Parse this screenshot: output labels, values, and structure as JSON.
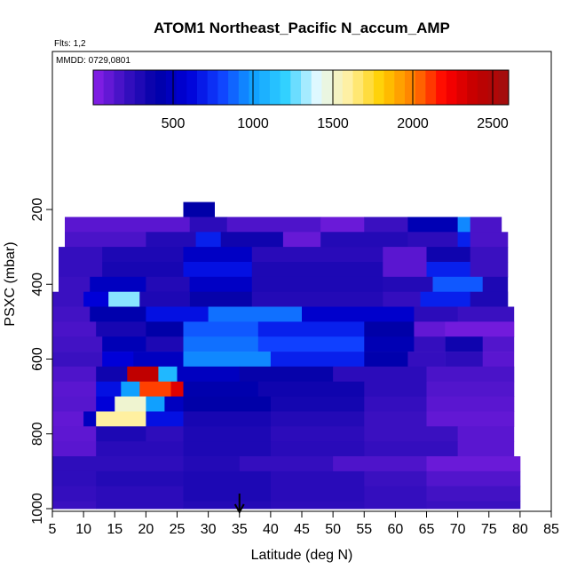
{
  "chart_data": {
    "type": "heatmap",
    "title": "ATOM1 Northeast_Pacific N_accum_AMP",
    "flights_note": "Flts: 1,2",
    "date_note": "MMDD: 0729,0801",
    "xlabel": "Latitude (deg N)",
    "ylabel": "PSXC (mbar)",
    "xlim": [
      5,
      85
    ],
    "ylim": [
      1000,
      0
    ],
    "x_ticks": [
      "5",
      "10",
      "15",
      "20",
      "25",
      "30",
      "35",
      "40",
      "45",
      "50",
      "55",
      "60",
      "65",
      "70",
      "75",
      "80",
      "85"
    ],
    "y_ticks": [
      "200",
      "400",
      "600",
      "800",
      "1000"
    ],
    "colorbar": {
      "range": [
        0,
        2600
      ],
      "tick_labels": [
        "500",
        "1000",
        "1500",
        "2000",
        "2500"
      ],
      "colors": [
        "#8a20e8",
        "#3a10c0",
        "#0000a8",
        "#0000d8",
        "#1040ff",
        "#10a0ff",
        "#30d0ff",
        "#e0f8ff",
        "#fff0a0",
        "#ffd000",
        "#ff8000",
        "#ff0000",
        "#c00000",
        "#a01010"
      ]
    },
    "marker_latitude": 35,
    "rows": [
      {
        "p": [
          180,
          220
        ],
        "segments": [
          [
            26,
            31,
            400
          ]
        ]
      },
      {
        "p": [
          220,
          260
        ],
        "segments": [
          [
            7,
            27,
            120
          ],
          [
            27,
            33,
            250
          ],
          [
            33,
            48,
            150
          ],
          [
            48,
            55,
            80
          ],
          [
            55,
            62,
            200
          ],
          [
            62,
            70,
            450
          ],
          [
            70,
            72,
            950
          ],
          [
            72,
            77,
            160
          ]
        ]
      },
      {
        "p": [
          260,
          300
        ],
        "segments": [
          [
            7,
            20,
            160
          ],
          [
            20,
            28,
            280
          ],
          [
            28,
            32,
            700
          ],
          [
            32,
            42,
            350
          ],
          [
            42,
            48,
            90
          ],
          [
            48,
            62,
            280
          ],
          [
            62,
            70,
            250
          ],
          [
            70,
            72,
            700
          ],
          [
            72,
            78,
            160
          ]
        ]
      },
      {
        "p": [
          300,
          340
        ],
        "segments": [
          [
            6,
            13,
            220
          ],
          [
            13,
            26,
            300
          ],
          [
            26,
            37,
            520
          ],
          [
            37,
            58,
            260
          ],
          [
            58,
            65,
            120
          ],
          [
            65,
            72,
            350
          ],
          [
            72,
            78,
            200
          ]
        ]
      },
      {
        "p": [
          340,
          380
        ],
        "segments": [
          [
            6,
            13,
            220
          ],
          [
            13,
            26,
            320
          ],
          [
            26,
            37,
            650
          ],
          [
            37,
            58,
            300
          ],
          [
            58,
            65,
            120
          ],
          [
            65,
            72,
            700
          ],
          [
            72,
            78,
            200
          ]
        ]
      },
      {
        "p": [
          380,
          420
        ],
        "segments": [
          [
            6,
            11,
            200
          ],
          [
            11,
            20,
            500
          ],
          [
            20,
            27,
            280
          ],
          [
            27,
            37,
            520
          ],
          [
            37,
            58,
            300
          ],
          [
            58,
            66,
            280
          ],
          [
            66,
            74,
            850
          ],
          [
            74,
            78,
            300
          ]
        ]
      },
      {
        "p": [
          420,
          460
        ],
        "segments": [
          [
            5,
            10,
            200
          ],
          [
            10,
            14,
            600
          ],
          [
            14,
            19,
            1300
          ],
          [
            19,
            27,
            300
          ],
          [
            27,
            37,
            380
          ],
          [
            37,
            58,
            280
          ],
          [
            58,
            64,
            220
          ],
          [
            64,
            72,
            700
          ],
          [
            72,
            78,
            300
          ]
        ]
      },
      {
        "p": [
          460,
          500
        ],
        "segments": [
          [
            5,
            11,
            180
          ],
          [
            11,
            20,
            420
          ],
          [
            20,
            30,
            650
          ],
          [
            30,
            45,
            900
          ],
          [
            45,
            63,
            550
          ],
          [
            63,
            70,
            250
          ],
          [
            70,
            79,
            200
          ]
        ]
      },
      {
        "p": [
          500,
          540
        ],
        "segments": [
          [
            5,
            12,
            160
          ],
          [
            12,
            20,
            320
          ],
          [
            20,
            26,
            400
          ],
          [
            26,
            38,
            850
          ],
          [
            38,
            55,
            700
          ],
          [
            55,
            63,
            400
          ],
          [
            63,
            68,
            100
          ],
          [
            68,
            79,
            60
          ]
        ]
      },
      {
        "p": [
          540,
          580
        ],
        "segments": [
          [
            5,
            13,
            180
          ],
          [
            13,
            20,
            460
          ],
          [
            20,
            26,
            300
          ],
          [
            26,
            38,
            900
          ],
          [
            38,
            55,
            800
          ],
          [
            55,
            63,
            450
          ],
          [
            63,
            68,
            220
          ],
          [
            68,
            74,
            350
          ],
          [
            74,
            79,
            140
          ]
        ]
      },
      {
        "p": [
          580,
          620
        ],
        "segments": [
          [
            5,
            13,
            200
          ],
          [
            13,
            18,
            600
          ],
          [
            18,
            26,
            500
          ],
          [
            26,
            40,
            950
          ],
          [
            40,
            55,
            700
          ],
          [
            55,
            62,
            420
          ],
          [
            62,
            68,
            220
          ],
          [
            68,
            74,
            250
          ],
          [
            74,
            79,
            120
          ]
        ]
      },
      {
        "p": [
          620,
          660
        ],
        "segments": [
          [
            5,
            12,
            150
          ],
          [
            12,
            17,
            350
          ],
          [
            17,
            22,
            2400
          ],
          [
            22,
            25,
            1100
          ],
          [
            25,
            35,
            500
          ],
          [
            35,
            50,
            380
          ],
          [
            50,
            65,
            250
          ],
          [
            65,
            79,
            160
          ]
        ]
      },
      {
        "p": [
          660,
          700
        ],
        "segments": [
          [
            5,
            12,
            120
          ],
          [
            12,
            16,
            650
          ],
          [
            16,
            19,
            1000
          ],
          [
            19,
            24,
            2100
          ],
          [
            24,
            26,
            2300
          ],
          [
            26,
            38,
            420
          ],
          [
            38,
            55,
            350
          ],
          [
            55,
            65,
            250
          ],
          [
            65,
            79,
            140
          ]
        ]
      },
      {
        "p": [
          700,
          740
        ],
        "segments": [
          [
            5,
            12,
            130
          ],
          [
            12,
            15,
            600
          ],
          [
            15,
            20,
            1500
          ],
          [
            20,
            23,
            1000
          ],
          [
            23,
            26,
            500
          ],
          [
            26,
            40,
            400
          ],
          [
            40,
            55,
            330
          ],
          [
            55,
            65,
            220
          ],
          [
            65,
            79,
            120
          ]
        ]
      },
      {
        "p": [
          740,
          780
        ],
        "segments": [
          [
            5,
            10,
            100
          ],
          [
            10,
            12,
            500
          ],
          [
            12,
            20,
            1600
          ],
          [
            20,
            26,
            650
          ],
          [
            26,
            40,
            320
          ],
          [
            40,
            55,
            280
          ],
          [
            55,
            65,
            200
          ],
          [
            65,
            79,
            100
          ]
        ]
      },
      {
        "p": [
          780,
          820
        ],
        "segments": [
          [
            5,
            12,
            110
          ],
          [
            12,
            20,
            300
          ],
          [
            20,
            26,
            240
          ],
          [
            26,
            40,
            300
          ],
          [
            40,
            55,
            250
          ],
          [
            55,
            70,
            200
          ],
          [
            70,
            79,
            120
          ]
        ]
      },
      {
        "p": [
          820,
          860
        ],
        "segments": [
          [
            5,
            12,
            120
          ],
          [
            12,
            26,
            260
          ],
          [
            26,
            40,
            300
          ],
          [
            40,
            55,
            260
          ],
          [
            55,
            70,
            220
          ],
          [
            70,
            79,
            120
          ]
        ]
      },
      {
        "p": [
          860,
          900
        ],
        "segments": [
          [
            5,
            26,
            240
          ],
          [
            26,
            35,
            280
          ],
          [
            35,
            50,
            220
          ],
          [
            50,
            65,
            150
          ],
          [
            65,
            80,
            80
          ]
        ]
      },
      {
        "p": [
          900,
          940
        ],
        "segments": [
          [
            5,
            12,
            240
          ],
          [
            12,
            26,
            280
          ],
          [
            26,
            40,
            300
          ],
          [
            40,
            55,
            260
          ],
          [
            55,
            65,
            200
          ],
          [
            65,
            80,
            140
          ]
        ]
      },
      {
        "p": [
          940,
          980
        ],
        "segments": [
          [
            5,
            12,
            220
          ],
          [
            12,
            26,
            250
          ],
          [
            26,
            40,
            300
          ],
          [
            40,
            55,
            260
          ],
          [
            55,
            65,
            220
          ],
          [
            65,
            80,
            180
          ]
        ]
      },
      {
        "p": [
          980,
          1000
        ],
        "segments": [
          [
            5,
            12,
            200
          ],
          [
            12,
            26,
            250
          ],
          [
            26,
            40,
            280
          ],
          [
            40,
            55,
            250
          ],
          [
            55,
            65,
            220
          ],
          [
            65,
            80,
            200
          ]
        ]
      }
    ]
  }
}
